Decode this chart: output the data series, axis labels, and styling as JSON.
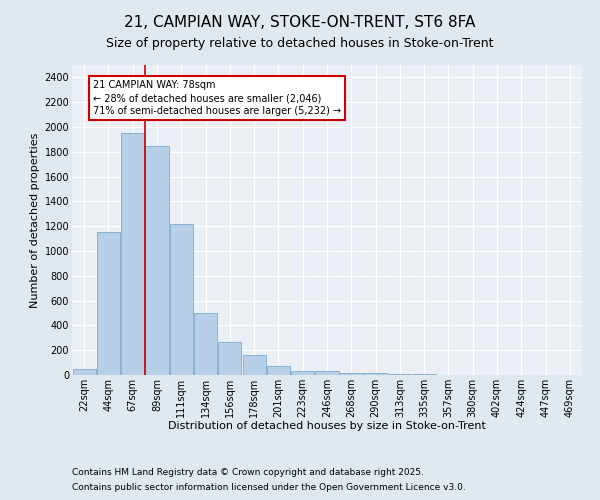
{
  "title1": "21, CAMPIAN WAY, STOKE-ON-TRENT, ST6 8FA",
  "title2": "Size of property relative to detached houses in Stoke-on-Trent",
  "xlabel": "Distribution of detached houses by size in Stoke-on-Trent",
  "ylabel": "Number of detached properties",
  "categories": [
    "22sqm",
    "44sqm",
    "67sqm",
    "89sqm",
    "111sqm",
    "134sqm",
    "156sqm",
    "178sqm",
    "201sqm",
    "223sqm",
    "246sqm",
    "268sqm",
    "290sqm",
    "313sqm",
    "335sqm",
    "357sqm",
    "380sqm",
    "402sqm",
    "424sqm",
    "447sqm",
    "469sqm"
  ],
  "values": [
    50,
    1150,
    1950,
    1850,
    1220,
    500,
    270,
    160,
    75,
    30,
    30,
    20,
    15,
    5,
    5,
    3,
    3,
    2,
    1,
    1,
    0
  ],
  "bar_color": "#b8cfe8",
  "bar_edge_color": "#7aabcf",
  "vline_color": "#cc0000",
  "vline_pos": 2.5,
  "annotation_title": "21 CAMPIAN WAY: 78sqm",
  "annotation_line1": "← 28% of detached houses are smaller (2,046)",
  "annotation_line2": "71% of semi-detached houses are larger (5,232) →",
  "annotation_box_color": "#cc0000",
  "ylim": [
    0,
    2500
  ],
  "yticks": [
    0,
    200,
    400,
    600,
    800,
    1000,
    1200,
    1400,
    1600,
    1800,
    2000,
    2200,
    2400
  ],
  "bg_color": "#e0e8f0",
  "plot_bg_color": "#eaeff6",
  "footer1": "Contains HM Land Registry data © Crown copyright and database right 2025.",
  "footer2": "Contains public sector information licensed under the Open Government Licence v3.0.",
  "title1_fontsize": 11,
  "title2_fontsize": 9,
  "xlabel_fontsize": 8,
  "ylabel_fontsize": 8,
  "tick_fontsize": 7,
  "annotation_fontsize": 7,
  "footer_fontsize": 6.5
}
